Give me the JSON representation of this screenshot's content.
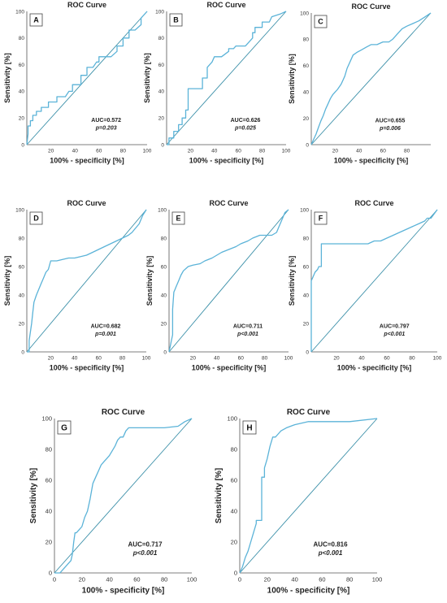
{
  "figure": {
    "panels": [
      {
        "letter": "A",
        "title": "ROC Curve",
        "xlabel": "100% - specificity [%]",
        "ylabel": "Sensitivity [%]",
        "auc_text": "AUC=0.572",
        "p_text": "p=0.203"
      },
      {
        "letter": "B",
        "title": "ROC Curve",
        "xlabel": "100% - specificity [%]",
        "ylabel": "Sensitivity [%]",
        "auc_text": "AUC=0.626",
        "p_text": "p=0.025"
      },
      {
        "letter": "C",
        "title": "ROC Curve",
        "xlabel": "100% - specificity [%]",
        "ylabel": "Sensitivity [%]",
        "auc_text": "AUC=0.655",
        "p_text": "p=0.006"
      },
      {
        "letter": "D",
        "title": "ROC Curve",
        "xlabel": "100% - specificity [%]",
        "ylabel": "Sensitivity [%]",
        "auc_text": "AUC=0.682",
        "p_text": "p=0.001"
      },
      {
        "letter": "E",
        "title": "ROC Curve",
        "xlabel": "100% - specificity [%]",
        "ylabel": "Sensitivity [%]",
        "auc_text": "AUC=0.711",
        "p_text": "p<0.001"
      },
      {
        "letter": "F",
        "title": "ROC Curve",
        "xlabel": "100% - specificity [%]",
        "ylabel": "Sensitivity [%]",
        "auc_text": "AUC=0.797",
        "p_text": "p<0.001"
      },
      {
        "letter": "G",
        "title": "ROC Curve",
        "xlabel": "100% - specificity [%]",
        "ylabel": "Sensitivity [%]",
        "auc_text": "AUC=0.717",
        "p_text": "p<0.001"
      },
      {
        "letter": "H",
        "title": "ROC Curve",
        "xlabel": "100% - specificity [%]",
        "ylabel": "Sensitivity [%]",
        "auc_text": "AUC=0.816",
        "p_text": "p<0.001"
      }
    ]
  },
  "chart_data": [
    {
      "type": "line",
      "panel": "A",
      "title": "ROC Curve",
      "xlabel": "100% - specificity [%]",
      "ylabel": "Sensitivity [%]",
      "xlim": [
        0,
        100
      ],
      "ylim": [
        0,
        100
      ],
      "xticks": [
        20,
        40,
        60,
        80,
        100
      ],
      "yticks": [
        0,
        20,
        40,
        60,
        80,
        100
      ],
      "auc": 0.572,
      "p": "p=0.203",
      "curve_color": "#5bb3d8",
      "reference_color": "#3a8fa8",
      "series": [
        {
          "x": [
            0,
            1,
            1,
            3,
            3,
            5,
            5,
            8,
            8,
            12,
            12,
            18,
            18,
            25,
            25,
            32,
            35,
            38,
            38,
            45,
            45,
            50,
            50,
            55,
            58,
            60,
            60,
            70,
            75,
            75,
            80,
            80,
            85,
            85,
            90,
            95,
            95,
            100
          ],
          "y": [
            0,
            8,
            14,
            14,
            18,
            18,
            22,
            22,
            25,
            25,
            28,
            28,
            32,
            32,
            36,
            36,
            40,
            40,
            45,
            45,
            52,
            52,
            58,
            58,
            62,
            62,
            66,
            66,
            70,
            74,
            74,
            80,
            80,
            86,
            86,
            90,
            95,
            100
          ]
        }
      ]
    },
    {
      "type": "line",
      "panel": "B",
      "title": "ROC Curve",
      "xlabel": "100% - specificity [%]",
      "ylabel": "Sensitivity [%]",
      "xlim": [
        0,
        100
      ],
      "ylim": [
        0,
        100
      ],
      "xticks": [
        20,
        40,
        60,
        80,
        100
      ],
      "yticks": [
        0,
        20,
        40,
        60,
        80,
        100
      ],
      "auc": 0.626,
      "p": "p=0.025",
      "curve_color": "#5bb3d8",
      "reference_color": "#3a8fa8",
      "series": [
        {
          "x": [
            0,
            2,
            2,
            6,
            6,
            10,
            10,
            13,
            13,
            16,
            16,
            18,
            18,
            30,
            30,
            34,
            34,
            38,
            40,
            46,
            52,
            52,
            56,
            58,
            66,
            72,
            72,
            74,
            74,
            80,
            80,
            86,
            88,
            95,
            100
          ],
          "y": [
            0,
            0,
            5,
            5,
            10,
            10,
            15,
            15,
            20,
            20,
            26,
            26,
            42,
            42,
            50,
            50,
            58,
            62,
            66,
            66,
            70,
            72,
            72,
            74,
            74,
            80,
            84,
            84,
            88,
            88,
            92,
            92,
            96,
            98,
            100
          ]
        }
      ]
    },
    {
      "type": "line",
      "panel": "C",
      "title": "ROC Curve",
      "xlabel": "100% - specificity [%]",
      "ylabel": "Sensitivity [%]",
      "xlim": [
        0,
        100
      ],
      "ylim": [
        0,
        100
      ],
      "xticks": [
        20,
        40,
        60,
        80
      ],
      "yticks": [
        0,
        20,
        40,
        60,
        80,
        100
      ],
      "auc": 0.655,
      "p": "p=0.006",
      "curve_color": "#5bb3d8",
      "reference_color": "#3a8fa8",
      "series": [
        {
          "x": [
            0,
            2,
            4,
            6,
            8,
            10,
            12,
            14,
            16,
            18,
            20,
            22,
            25,
            28,
            30,
            32,
            35,
            38,
            42,
            46,
            50,
            55,
            60,
            65,
            68,
            72,
            76,
            80,
            85,
            90,
            95,
            100
          ],
          "y": [
            0,
            4,
            8,
            13,
            18,
            22,
            27,
            31,
            35,
            38,
            40,
            42,
            46,
            52,
            58,
            62,
            68,
            70,
            72,
            74,
            76,
            76,
            78,
            78,
            80,
            84,
            88,
            90,
            92,
            94,
            97,
            100
          ]
        }
      ]
    },
    {
      "type": "line",
      "panel": "D",
      "title": "ROC Curve",
      "xlabel": "100% - specificity [%]",
      "ylabel": "Sensitivity [%]",
      "xlim": [
        0,
        100
      ],
      "ylim": [
        0,
        100
      ],
      "xticks": [
        20,
        40,
        60,
        80,
        100
      ],
      "yticks": [
        0,
        20,
        40,
        60,
        80,
        100
      ],
      "auc": 0.682,
      "p": "p=0.001",
      "curve_color": "#5bb3d8",
      "reference_color": "#3a8fa8",
      "series": [
        {
          "x": [
            0,
            2,
            2,
            4,
            5,
            6,
            8,
            10,
            12,
            14,
            16,
            18,
            20,
            25,
            30,
            35,
            40,
            45,
            50,
            55,
            60,
            65,
            70,
            75,
            80,
            85,
            88,
            90,
            94,
            97,
            100
          ],
          "y": [
            0,
            0,
            8,
            20,
            28,
            35,
            40,
            44,
            48,
            52,
            56,
            58,
            64,
            64,
            65,
            66,
            66,
            67,
            68,
            70,
            72,
            74,
            76,
            78,
            80,
            82,
            84,
            86,
            90,
            96,
            100
          ]
        }
      ]
    },
    {
      "type": "line",
      "panel": "E",
      "title": "ROC Curve",
      "xlabel": "100% - specificity [%]",
      "ylabel": "Sensitivity [%]",
      "xlim": [
        0,
        100
      ],
      "ylim": [
        0,
        100
      ],
      "xticks": [
        20,
        40,
        60,
        80,
        100
      ],
      "yticks": [
        0,
        20,
        40,
        60,
        80,
        100
      ],
      "auc": 0.711,
      "p": "p<0.001",
      "curve_color": "#5bb3d8",
      "reference_color": "#3a8fa8",
      "series": [
        {
          "x": [
            0,
            1,
            2,
            3,
            3,
            4,
            5,
            6,
            8,
            10,
            12,
            16,
            20,
            26,
            30,
            36,
            40,
            44,
            50,
            56,
            60,
            66,
            70,
            76,
            80,
            86,
            90,
            92,
            95,
            97,
            100
          ],
          "y": [
            0,
            4,
            8,
            12,
            30,
            42,
            44,
            46,
            50,
            54,
            57,
            60,
            61,
            62,
            64,
            66,
            68,
            70,
            72,
            74,
            76,
            78,
            80,
            82,
            82,
            82,
            84,
            88,
            94,
            98,
            100
          ]
        }
      ]
    },
    {
      "type": "line",
      "panel": "F",
      "title": "ROC Curve",
      "xlabel": "100% - specificity [%]",
      "ylabel": "Sensitivity [%]",
      "xlim": [
        0,
        100
      ],
      "ylim": [
        0,
        100
      ],
      "xticks": [
        20,
        40,
        60,
        80,
        100
      ],
      "yticks": [
        0,
        20,
        40,
        60,
        80,
        100
      ],
      "auc": 0.797,
      "p": "p<0.001",
      "curve_color": "#5bb3d8",
      "reference_color": "#3a8fa8",
      "series": [
        {
          "x": [
            0,
            0,
            1,
            2,
            3,
            5,
            6,
            8,
            8,
            10,
            14,
            20,
            30,
            40,
            45,
            50,
            55,
            60,
            65,
            70,
            75,
            80,
            85,
            90,
            92,
            95,
            100
          ],
          "y": [
            0,
            50,
            52,
            54,
            56,
            58,
            60,
            60,
            76,
            76,
            76,
            76,
            76,
            76,
            76,
            78,
            78,
            80,
            82,
            84,
            86,
            88,
            90,
            92,
            94,
            94,
            100
          ]
        }
      ]
    },
    {
      "type": "line",
      "panel": "G",
      "title": "ROC Curve",
      "xlabel": "100% - specificity [%]",
      "ylabel": "Sensitivity [%]",
      "xlim": [
        0,
        100
      ],
      "ylim": [
        0,
        100
      ],
      "xticks": [
        0,
        20,
        40,
        60,
        80,
        100
      ],
      "yticks": [
        0,
        20,
        40,
        60,
        80,
        100
      ],
      "auc": 0.717,
      "p": "p<0.001",
      "curve_color": "#5bb3d8",
      "reference_color": "#3a8fa8",
      "series": [
        {
          "x": [
            0,
            4,
            6,
            8,
            10,
            12,
            13,
            14,
            15,
            16,
            18,
            20,
            22,
            24,
            26,
            28,
            30,
            32,
            34,
            36,
            38,
            40,
            44,
            46,
            48,
            50,
            52,
            54,
            56,
            60,
            70,
            80,
            90,
            95,
            100
          ],
          "y": [
            0,
            0,
            2,
            4,
            6,
            8,
            12,
            20,
            26,
            26,
            28,
            30,
            36,
            40,
            48,
            58,
            62,
            66,
            70,
            72,
            74,
            76,
            82,
            86,
            88,
            88,
            92,
            94,
            94,
            94,
            94,
            94,
            95,
            98,
            100
          ]
        }
      ]
    },
    {
      "type": "line",
      "panel": "H",
      "title": "ROC Curve",
      "xlabel": "100% - specificity [%]",
      "ylabel": "Sensitivity [%]",
      "xlim": [
        0,
        100
      ],
      "ylim": [
        0,
        100
      ],
      "xticks": [
        0,
        20,
        40,
        60,
        80,
        100
      ],
      "yticks": [
        0,
        20,
        40,
        60,
        80,
        100
      ],
      "auc": 0.816,
      "p": "p<0.001",
      "curve_color": "#5bb3d8",
      "reference_color": "#3a8fa8",
      "series": [
        {
          "x": [
            0,
            2,
            4,
            6,
            8,
            10,
            12,
            12,
            16,
            16,
            18,
            18,
            20,
            22,
            24,
            26,
            28,
            30,
            34,
            40,
            50,
            60,
            80,
            100
          ],
          "y": [
            0,
            4,
            10,
            14,
            20,
            26,
            32,
            34,
            34,
            62,
            62,
            68,
            74,
            82,
            88,
            88,
            90,
            92,
            94,
            96,
            98,
            98,
            98,
            100
          ]
        }
      ]
    }
  ]
}
